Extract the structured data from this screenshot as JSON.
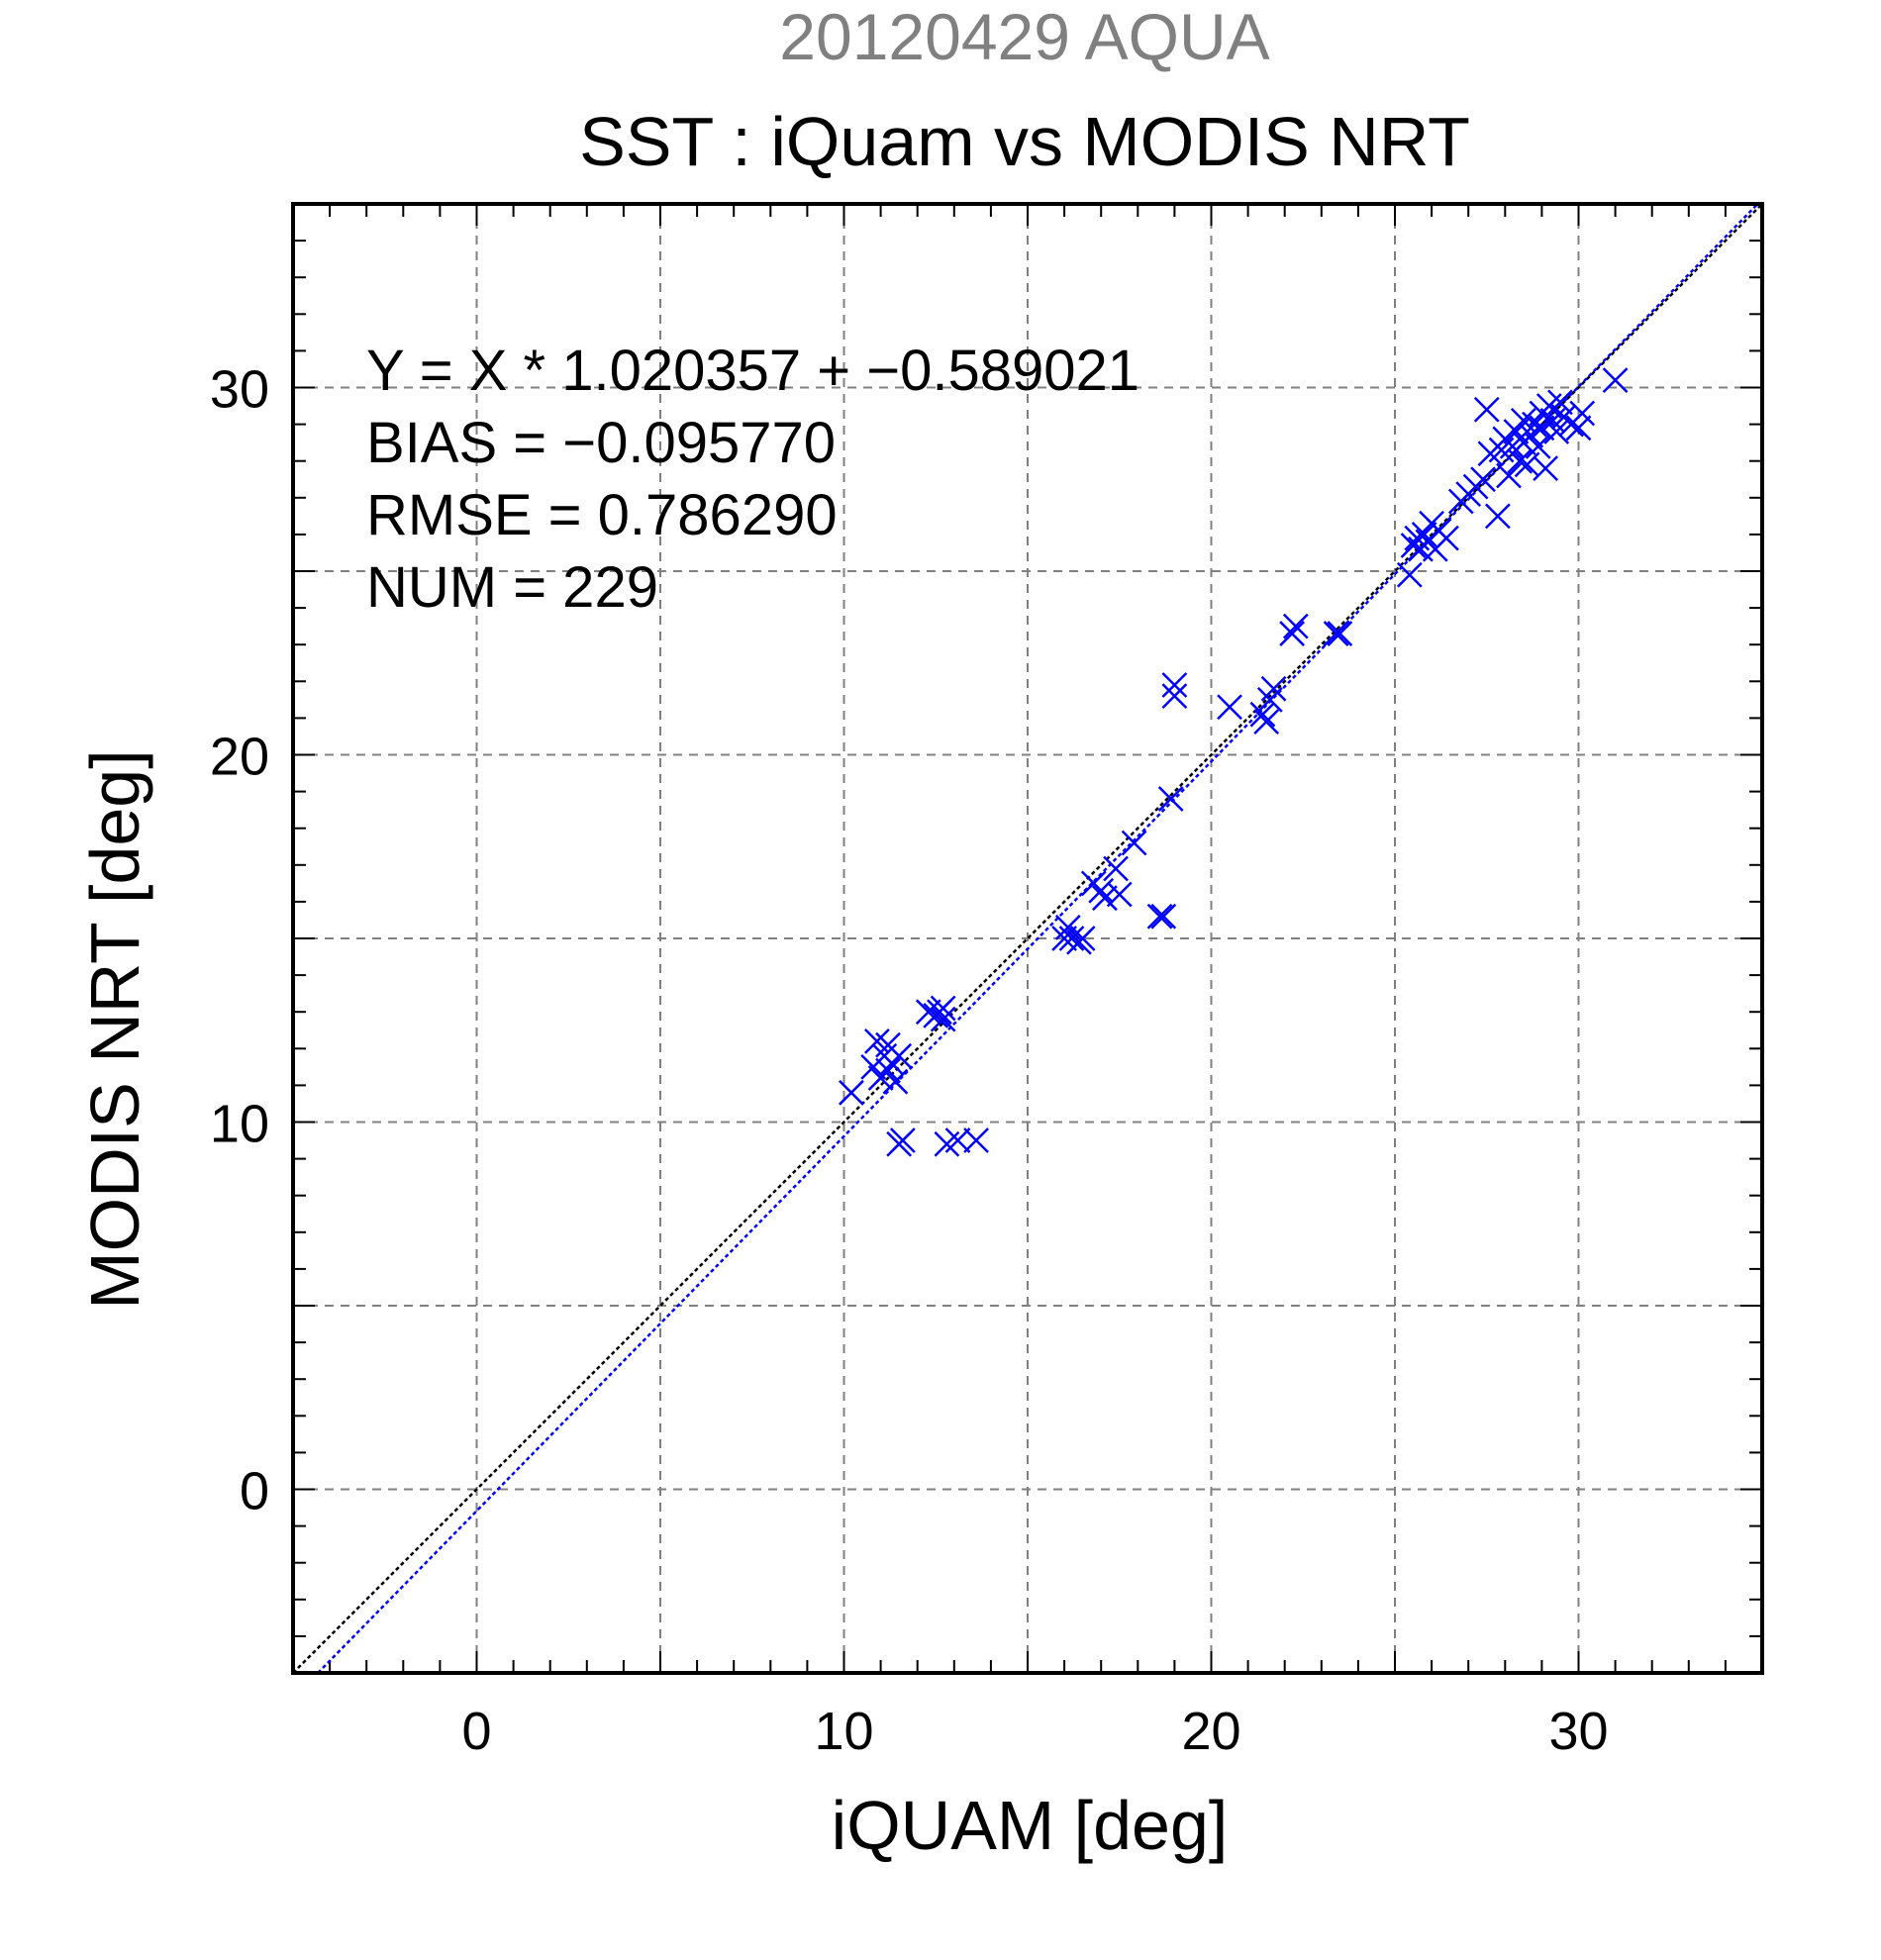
{
  "chart_data": {
    "type": "scatter",
    "supertitle": "20120429 AQUA",
    "title": "SST : iQuam vs MODIS NRT",
    "xlabel": "iQUAM [deg]",
    "ylabel": "MODIS NRT [deg]",
    "xlim": [
      -5,
      35
    ],
    "ylim": [
      -5,
      35
    ],
    "xticks": [
      0,
      10,
      20,
      30
    ],
    "yticks": [
      0,
      10,
      20,
      30
    ],
    "grid": true,
    "stats": {
      "equation": "Y = X * 1.020357 + −0.589021",
      "bias": "BIAS = −0.095770",
      "rmse": "RMSE = 0.786290",
      "num": "NUM = 229"
    },
    "fit": {
      "slope": 1.020357,
      "intercept": -0.589021
    },
    "colors": {
      "points": "#0000ff",
      "fit_line": "#0000ff",
      "identity_line": "#000000",
      "grid": "#808080",
      "supertitle": "#808080"
    },
    "series": [
      {
        "marker": "x",
        "points": [
          [
            10.2,
            10.8
          ],
          [
            10.8,
            11.5
          ],
          [
            10.9,
            12.2
          ],
          [
            11.0,
            11.2
          ],
          [
            11.1,
            11.8
          ],
          [
            11.2,
            11.4
          ],
          [
            11.2,
            12.1
          ],
          [
            11.3,
            11.6
          ],
          [
            11.4,
            11.1
          ],
          [
            11.5,
            11.8
          ],
          [
            11.5,
            9.4
          ],
          [
            11.6,
            9.5
          ],
          [
            12.3,
            13.0
          ],
          [
            12.5,
            12.9
          ],
          [
            12.6,
            13.0
          ],
          [
            12.7,
            12.8
          ],
          [
            12.7,
            13.1
          ],
          [
            12.8,
            9.4
          ],
          [
            13.1,
            9.5
          ],
          [
            13.6,
            9.5
          ],
          [
            16.0,
            15.0
          ],
          [
            16.1,
            15.3
          ],
          [
            16.2,
            15.0
          ],
          [
            16.4,
            14.9
          ],
          [
            16.5,
            15.0
          ],
          [
            16.8,
            16.5
          ],
          [
            17.0,
            16.3
          ],
          [
            17.1,
            16.1
          ],
          [
            17.4,
            16.9
          ],
          [
            17.5,
            16.2
          ],
          [
            17.9,
            17.6
          ],
          [
            18.6,
            15.6
          ],
          [
            18.7,
            15.6
          ],
          [
            18.9,
            18.8
          ],
          [
            19.0,
            21.6
          ],
          [
            19.0,
            21.9
          ],
          [
            20.5,
            21.3
          ],
          [
            21.4,
            21.1
          ],
          [
            21.5,
            20.9
          ],
          [
            21.6,
            21.5
          ],
          [
            21.7,
            21.8
          ],
          [
            22.2,
            23.3
          ],
          [
            22.3,
            23.5
          ],
          [
            23.4,
            23.3
          ],
          [
            23.5,
            23.3
          ],
          [
            25.4,
            24.9
          ],
          [
            25.5,
            25.7
          ],
          [
            25.6,
            25.9
          ],
          [
            25.7,
            25.6
          ],
          [
            25.8,
            26.0
          ],
          [
            25.9,
            25.8
          ],
          [
            26.0,
            26.3
          ],
          [
            26.1,
            25.6
          ],
          [
            26.2,
            26.1
          ],
          [
            26.4,
            25.9
          ],
          [
            26.8,
            26.9
          ],
          [
            27.0,
            27.1
          ],
          [
            27.2,
            27.3
          ],
          [
            27.4,
            27.5
          ],
          [
            27.5,
            29.4
          ],
          [
            27.6,
            28.2
          ],
          [
            27.8,
            26.5
          ],
          [
            27.9,
            28.3
          ],
          [
            28.0,
            28.6
          ],
          [
            28.1,
            27.6
          ],
          [
            28.2,
            28.4
          ],
          [
            28.3,
            28.8
          ],
          [
            28.4,
            28.0
          ],
          [
            28.5,
            29.1
          ],
          [
            28.5,
            28.5
          ],
          [
            28.6,
            27.9
          ],
          [
            28.7,
            28.7
          ],
          [
            28.8,
            29.0
          ],
          [
            28.9,
            28.4
          ],
          [
            29.0,
            29.3
          ],
          [
            29.0,
            28.9
          ],
          [
            29.1,
            27.8
          ],
          [
            29.2,
            29.5
          ],
          [
            29.3,
            29.1
          ],
          [
            29.4,
            28.8
          ],
          [
            29.5,
            29.6
          ],
          [
            29.6,
            29.2
          ],
          [
            29.8,
            29.0
          ],
          [
            30.0,
            28.9
          ],
          [
            30.1,
            29.3
          ],
          [
            31.0,
            30.2
          ]
        ]
      }
    ]
  }
}
